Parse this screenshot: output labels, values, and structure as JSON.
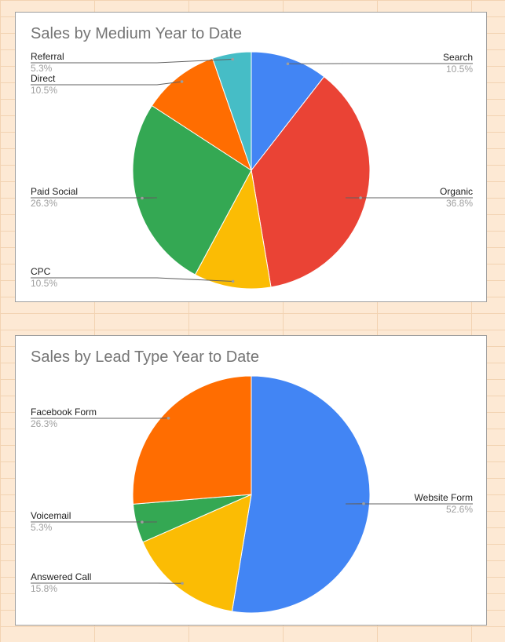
{
  "chart_data": [
    {
      "type": "pie",
      "title": "Sales by Medium Year to Date",
      "slices": [
        {
          "label": "Search",
          "value": 10.5,
          "display": "10.5%",
          "color": "#4285F4"
        },
        {
          "label": "Organic",
          "value": 36.8,
          "display": "36.8%",
          "color": "#EA4335"
        },
        {
          "label": "CPC",
          "value": 10.5,
          "display": "10.5%",
          "color": "#FBBC04"
        },
        {
          "label": "Paid Social",
          "value": 26.3,
          "display": "26.3%",
          "color": "#34A853"
        },
        {
          "label": "Direct",
          "value": 10.5,
          "display": "10.5%",
          "color": "#FF6D01"
        },
        {
          "label": "Referral",
          "value": 5.3,
          "display": "5.3%",
          "color": "#46BDC6"
        }
      ]
    },
    {
      "type": "pie",
      "title": "Sales by Lead Type Year to Date",
      "slices": [
        {
          "label": "Website Form",
          "value": 52.6,
          "display": "52.6%",
          "color": "#4285F4"
        },
        {
          "label": "Answered Call",
          "value": 15.8,
          "display": "15.8%",
          "color": "#FBBC04"
        },
        {
          "label": "Voicemail",
          "value": 5.3,
          "display": "5.3%",
          "color": "#34A853"
        },
        {
          "label": "Facebook Form",
          "value": 26.3,
          "display": "26.3%",
          "color": "#FF6D01"
        }
      ]
    }
  ]
}
